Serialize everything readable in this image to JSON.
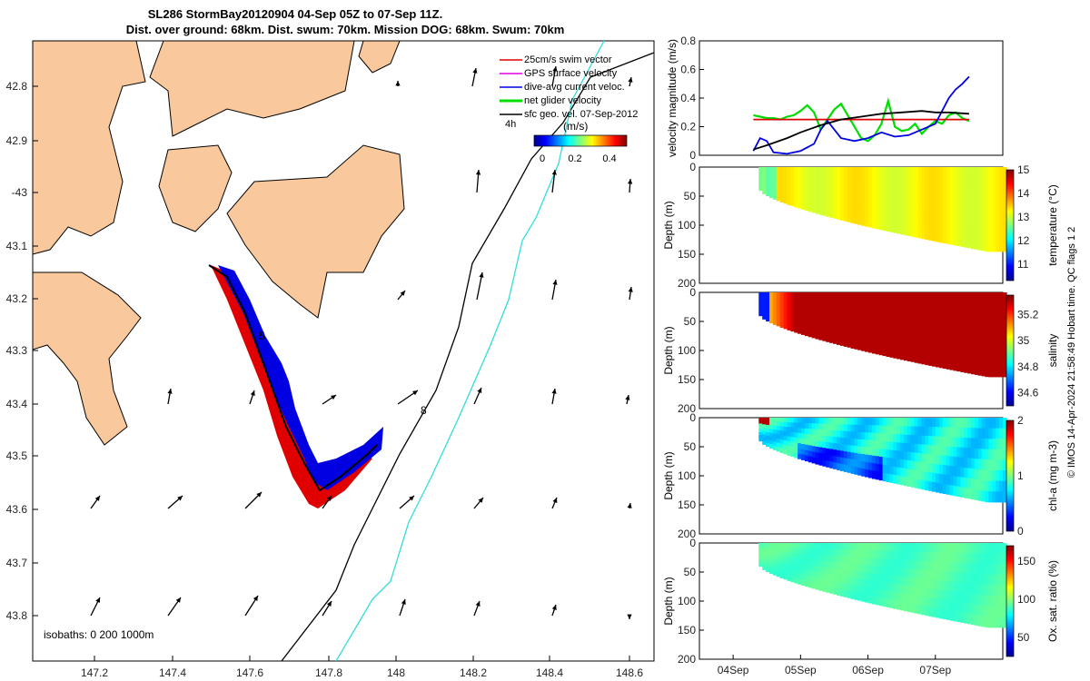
{
  "title": {
    "line1": "SL286 StormBay20120904 04-Sep 05Z to 07-Sep 11Z.",
    "line2": "Dist. over ground: 68km. Dist. swum: 70km. Mission DOG: 68km. Swum: 70km"
  },
  "map": {
    "lon_ticks": [
      "147.2",
      "147.4",
      "147.6",
      "147.8",
      "148",
      "148.2",
      "148.4",
      "148.6"
    ],
    "lat_ticks": [
      "42.8",
      "42.9",
      "-43",
      "43.1",
      "43.2",
      "43.3",
      "43.4",
      "43.5",
      "43.6",
      "43.7",
      "43.8"
    ],
    "legend": [
      {
        "label": "25cm/s swim vector",
        "color": "#e00000"
      },
      {
        "label": "GPS surface velocity",
        "color": "#e000e0"
      },
      {
        "label": "dive-avg current veloc.",
        "color": "#0000e0"
      },
      {
        "label": "net glider velocity",
        "color": "#00dd00"
      },
      {
        "label": "sfc geo. vel. 07-Sep-2012",
        "color": "#000000"
      }
    ],
    "colorbar": {
      "title": "(m/s)",
      "ticks": [
        "0",
        "0.2",
        "0.4"
      ],
      "time_label": "4h"
    },
    "isobaths_label": "isobaths: 0   200  1000m",
    "track_labels": [
      "5",
      "8"
    ]
  },
  "chart_data": [
    {
      "type": "line",
      "ylabel": "velocity magnitude (m/s)",
      "yticks": [
        "0",
        "0.2",
        "0.4",
        "0.6",
        "0.8"
      ],
      "ylim": [
        0,
        0.8
      ],
      "xlim": [
        3.5,
        8.0
      ],
      "series": [
        {
          "color": "#00dd00",
          "x": [
            4.3,
            4.4,
            4.5,
            4.6,
            4.7,
            4.8,
            4.9,
            5.0,
            5.1,
            5.2,
            5.3,
            5.4,
            5.5,
            5.6,
            5.7,
            5.8,
            5.9,
            6.0,
            6.1,
            6.2,
            6.3,
            6.4,
            6.5,
            6.6,
            6.7,
            6.8,
            6.9,
            7.0,
            7.1,
            7.2,
            7.3,
            7.4,
            7.5
          ],
          "y": [
            0.28,
            0.27,
            0.26,
            0.26,
            0.25,
            0.27,
            0.28,
            0.31,
            0.35,
            0.3,
            0.18,
            0.25,
            0.32,
            0.36,
            0.28,
            0.2,
            0.12,
            0.1,
            0.14,
            0.22,
            0.38,
            0.2,
            0.17,
            0.18,
            0.22,
            0.15,
            0.2,
            0.24,
            0.22,
            0.28,
            0.3,
            0.26,
            0.24
          ]
        },
        {
          "color": "#e00000",
          "x": [
            4.3,
            5.0,
            5.5,
            6.0,
            6.5,
            7.0,
            7.5
          ],
          "y": [
            0.25,
            0.25,
            0.25,
            0.25,
            0.25,
            0.25,
            0.25
          ]
        },
        {
          "color": "#0000e0",
          "x": [
            4.3,
            4.4,
            4.5,
            4.6,
            4.8,
            5.0,
            5.2,
            5.3,
            5.4,
            5.6,
            5.8,
            6.0,
            6.2,
            6.4,
            6.6,
            6.8,
            7.0,
            7.2,
            7.3,
            7.4,
            7.5
          ],
          "y": [
            0.03,
            0.12,
            0.1,
            0.02,
            0.01,
            0.03,
            0.08,
            0.18,
            0.24,
            0.12,
            0.1,
            0.12,
            0.16,
            0.13,
            0.14,
            0.18,
            0.22,
            0.4,
            0.46,
            0.5,
            0.55
          ]
        },
        {
          "color": "#000000",
          "x": [
            4.3,
            4.5,
            4.8,
            5.0,
            5.3,
            5.6,
            5.9,
            6.2,
            6.5,
            6.8,
            7.0,
            7.2,
            7.5
          ],
          "y": [
            0.04,
            0.07,
            0.12,
            0.16,
            0.21,
            0.25,
            0.27,
            0.29,
            0.3,
            0.31,
            0.3,
            0.3,
            0.29
          ]
        }
      ]
    },
    {
      "type": "heatmap",
      "variable": "temperature",
      "ylabel": "Depth (m)",
      "cblabel": "temperature (°C)",
      "cbticks": [
        "11",
        "12",
        "13",
        "14",
        "15"
      ],
      "clim": [
        10.3,
        15
      ],
      "yticks": [
        "0",
        "50",
        "100",
        "150",
        "200"
      ]
    },
    {
      "type": "heatmap",
      "variable": "salinity",
      "ylabel": "Depth (m)",
      "cblabel": "salinity",
      "cbticks": [
        "34.6",
        "34.8",
        "35",
        "35.2"
      ],
      "clim": [
        34.5,
        35.35
      ],
      "yticks": [
        "0",
        "50",
        "100",
        "150",
        "200"
      ]
    },
    {
      "type": "heatmap",
      "variable": "chl-a",
      "ylabel": "Depth (m)",
      "cblabel": "chl-a (mg m-3)",
      "cbticks": [
        "0",
        "1",
        "2"
      ],
      "clim": [
        0,
        2
      ],
      "yticks": [
        "0",
        "50",
        "100",
        "150",
        "200"
      ]
    },
    {
      "type": "heatmap",
      "variable": "oxygen saturation",
      "ylabel": "Depth (m)",
      "cblabel": "Ox. sat. ratio (%)",
      "cbticks": [
        "50",
        "100",
        "150"
      ],
      "clim": [
        25,
        170
      ],
      "yticks": [
        "0",
        "50",
        "100",
        "150",
        "200"
      ]
    }
  ],
  "xticks_time": [
    "04Sep",
    "05Sep",
    "06Sep",
    "07Sep"
  ],
  "side_caption": "© IMOS 14-Apr-2024 21:58:49 Hobart time. QC flags 1  2"
}
